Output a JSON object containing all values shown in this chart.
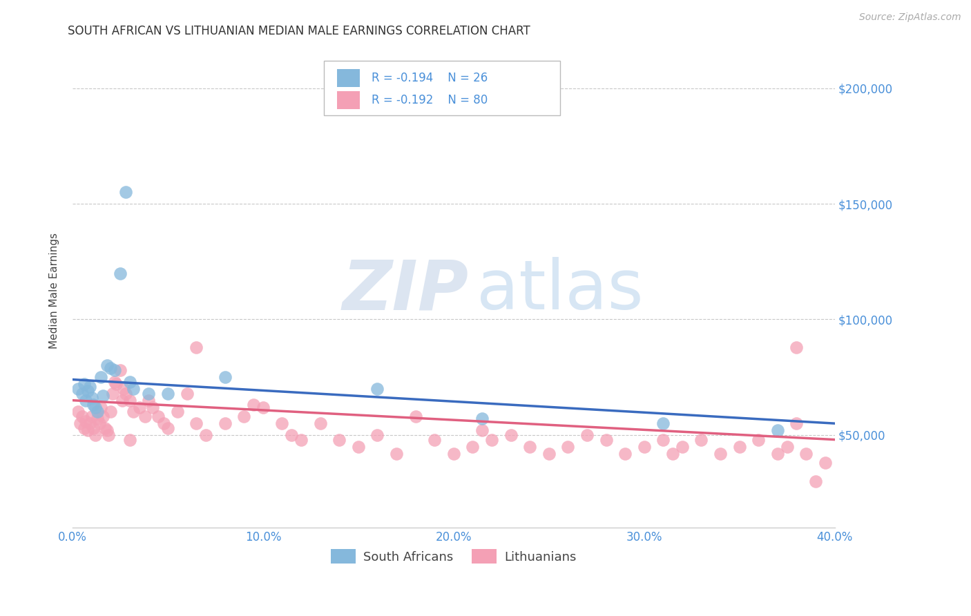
{
  "title": "SOUTH AFRICAN VS LITHUANIAN MEDIAN MALE EARNINGS CORRELATION CHART",
  "source": "Source: ZipAtlas.com",
  "ylabel": "Median Male Earnings",
  "xlim": [
    0.0,
    0.4
  ],
  "ylim": [
    10000,
    215000
  ],
  "yticks": [
    50000,
    100000,
    150000,
    200000
  ],
  "ytick_labels": [
    "$50,000",
    "$100,000",
    "$150,000",
    "$200,000"
  ],
  "xticks": [
    0.0,
    0.1,
    0.2,
    0.3,
    0.4
  ],
  "xtick_labels": [
    "0.0%",
    "10.0%",
    "20.0%",
    "30.0%",
    "40.0%"
  ],
  "background_color": "#ffffff",
  "grid_color": "#c8c8c8",
  "title_color": "#333333",
  "axis_label_color": "#444444",
  "tick_label_color": "#4a90d9",
  "source_color": "#aaaaaa",
  "legend_R1": "R = -0.194",
  "legend_N1": "N = 26",
  "legend_R2": "R = -0.192",
  "legend_N2": "N = 80",
  "legend_label1": "South Africans",
  "legend_label2": "Lithuanians",
  "blue_color": "#85b8dc",
  "pink_color": "#f4a0b5",
  "blue_line_color": "#3a6bbf",
  "pink_line_color": "#e06080",
  "watermark_zip": "ZIP",
  "watermark_atlas": "atlas",
  "blue_line_y0": 74000,
  "blue_line_y1": 55000,
  "pink_line_y0": 65000,
  "pink_line_y1": 48000,
  "sa_x": [
    0.003,
    0.005,
    0.006,
    0.007,
    0.008,
    0.009,
    0.01,
    0.011,
    0.012,
    0.013,
    0.015,
    0.016,
    0.018,
    0.02,
    0.022,
    0.025,
    0.028,
    0.03,
    0.032,
    0.04,
    0.05,
    0.08,
    0.16,
    0.215,
    0.31,
    0.37
  ],
  "sa_y": [
    70000,
    68000,
    72000,
    65000,
    69000,
    71000,
    66000,
    63000,
    62000,
    60000,
    75000,
    67000,
    80000,
    79000,
    78000,
    120000,
    155000,
    73000,
    70000,
    68000,
    68000,
    75000,
    70000,
    57000,
    55000,
    52000
  ],
  "lt_x": [
    0.003,
    0.004,
    0.005,
    0.006,
    0.007,
    0.008,
    0.009,
    0.01,
    0.011,
    0.012,
    0.013,
    0.014,
    0.015,
    0.016,
    0.017,
    0.018,
    0.019,
    0.02,
    0.021,
    0.022,
    0.023,
    0.025,
    0.026,
    0.027,
    0.028,
    0.03,
    0.032,
    0.035,
    0.038,
    0.04,
    0.042,
    0.045,
    0.048,
    0.05,
    0.055,
    0.06,
    0.065,
    0.07,
    0.08,
    0.09,
    0.1,
    0.11,
    0.115,
    0.12,
    0.13,
    0.14,
    0.15,
    0.16,
    0.17,
    0.18,
    0.19,
    0.2,
    0.21,
    0.215,
    0.22,
    0.23,
    0.24,
    0.25,
    0.26,
    0.27,
    0.28,
    0.29,
    0.3,
    0.31,
    0.315,
    0.32,
    0.33,
    0.34,
    0.35,
    0.36,
    0.37,
    0.375,
    0.38,
    0.385,
    0.39,
    0.395,
    0.03,
    0.065,
    0.095,
    0.38
  ],
  "lt_y": [
    60000,
    55000,
    58000,
    53000,
    56000,
    52000,
    55000,
    58000,
    53000,
    50000,
    57000,
    55000,
    62000,
    58000,
    53000,
    52000,
    50000,
    60000,
    68000,
    73000,
    72000,
    78000,
    65000,
    70000,
    68000,
    65000,
    60000,
    62000,
    58000,
    65000,
    62000,
    58000,
    55000,
    53000,
    60000,
    68000,
    55000,
    50000,
    55000,
    58000,
    62000,
    55000,
    50000,
    48000,
    55000,
    48000,
    45000,
    50000,
    42000,
    58000,
    48000,
    42000,
    45000,
    52000,
    48000,
    50000,
    45000,
    42000,
    45000,
    50000,
    48000,
    42000,
    45000,
    48000,
    42000,
    45000,
    48000,
    42000,
    45000,
    48000,
    42000,
    45000,
    55000,
    42000,
    30000,
    38000,
    48000,
    88000,
    63000,
    88000
  ]
}
